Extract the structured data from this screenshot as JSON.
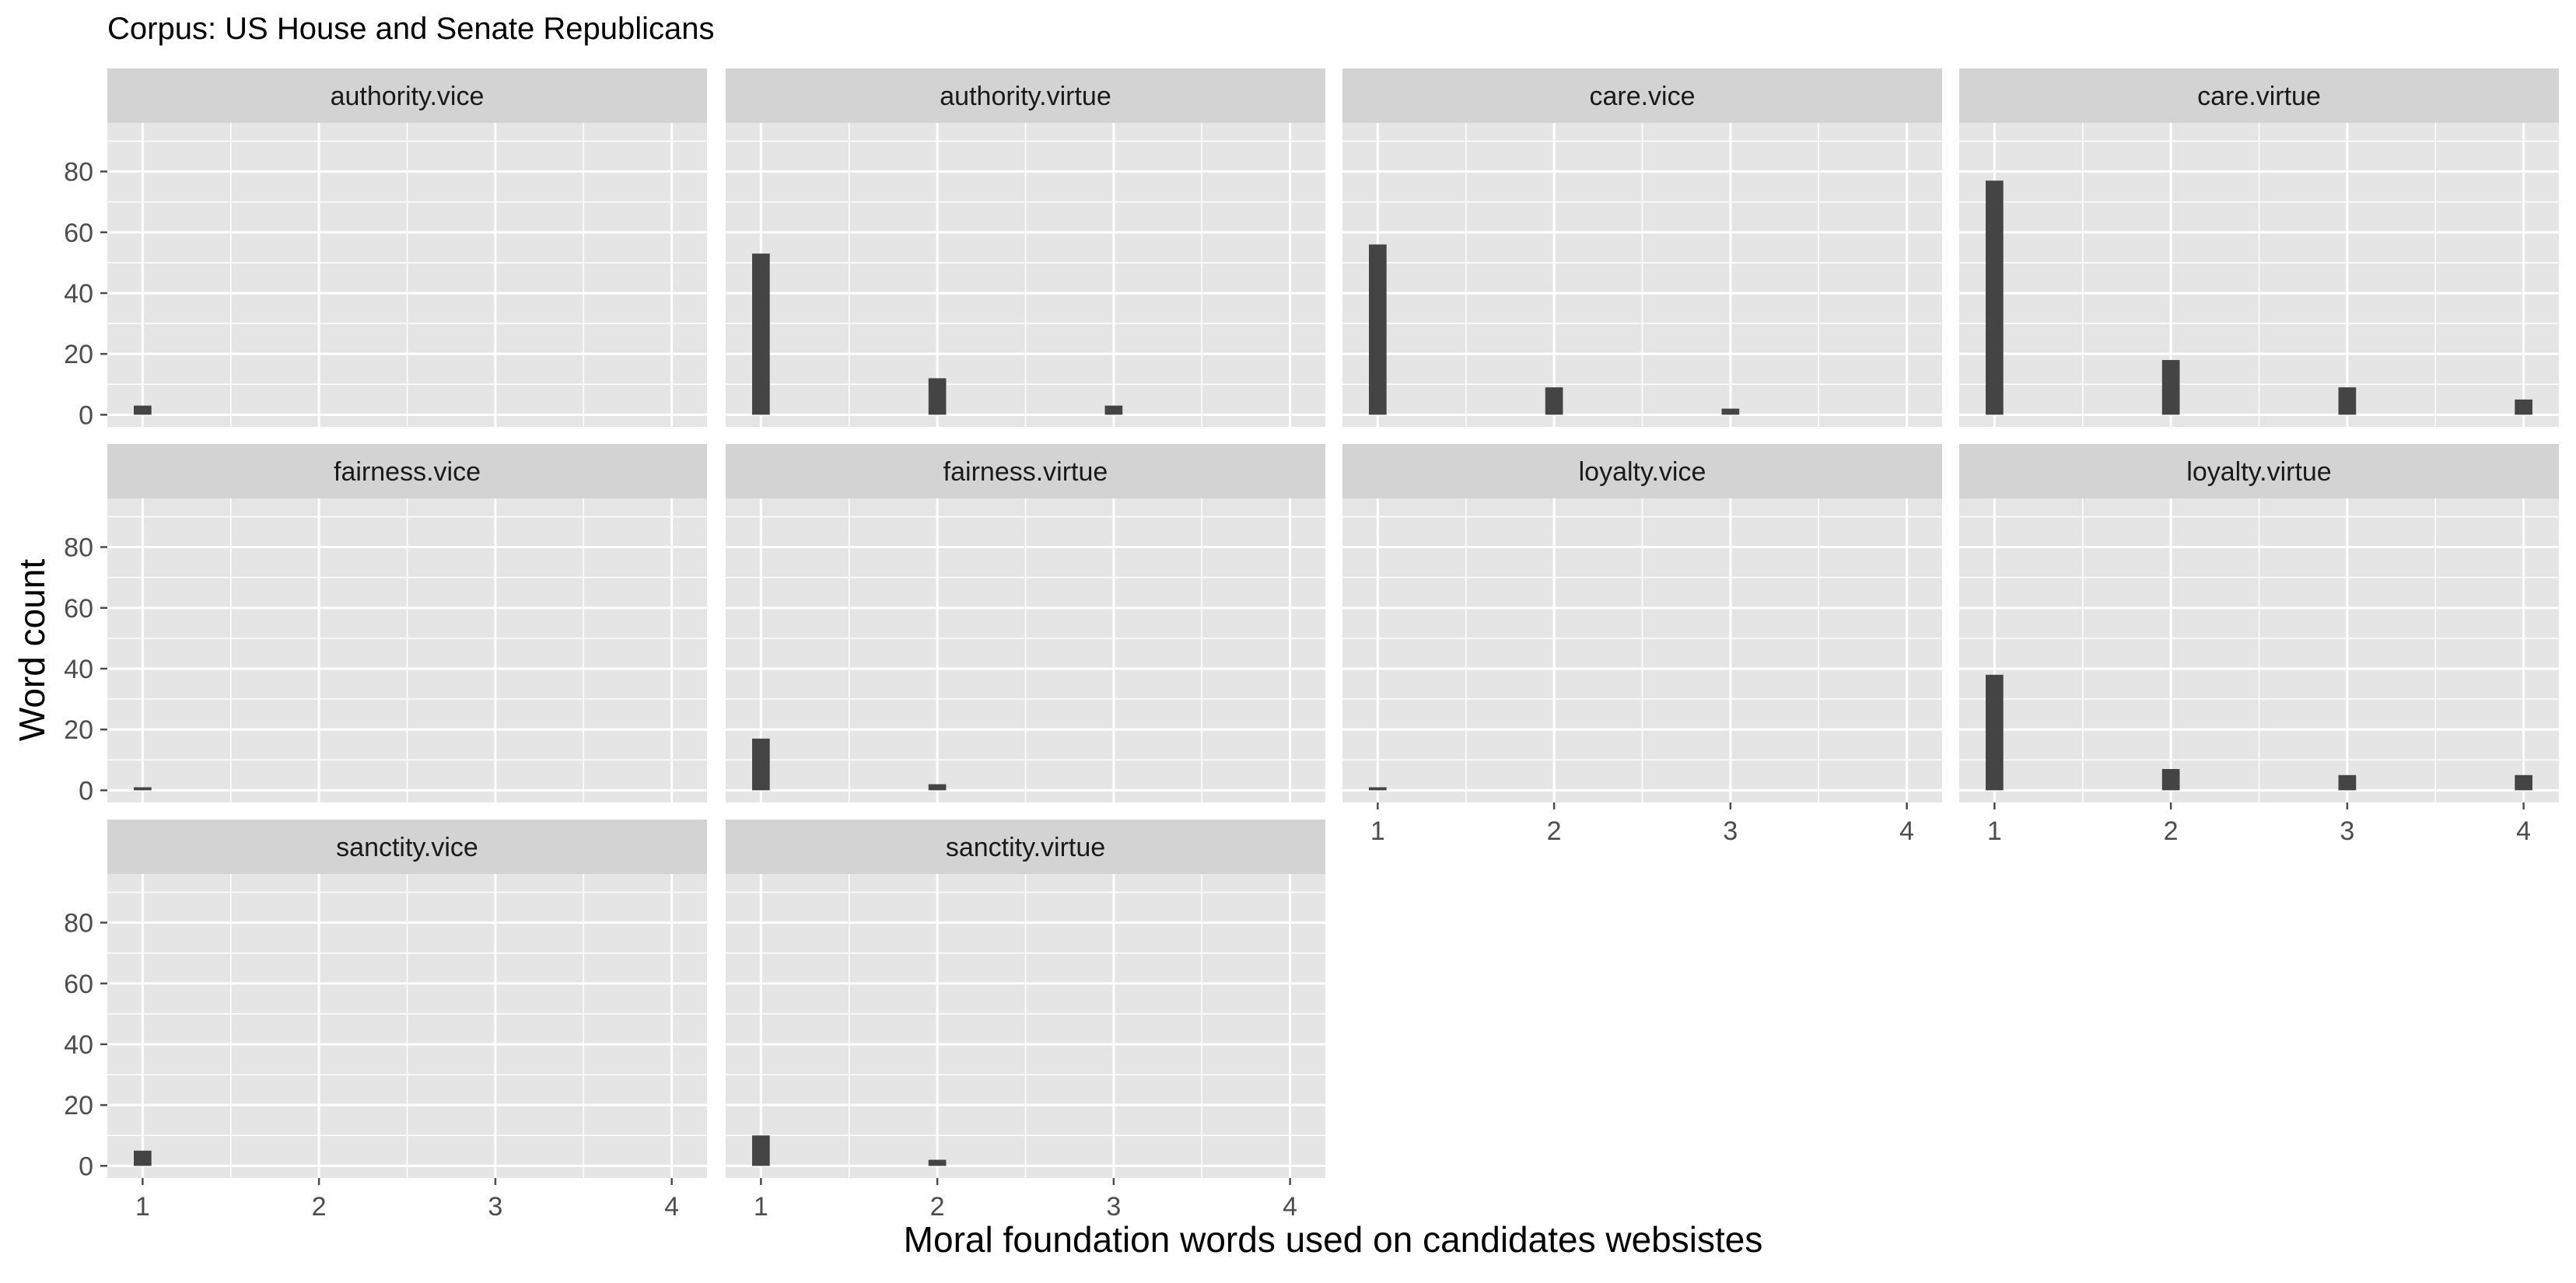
{
  "chart_data": {
    "type": "bar",
    "title": "Corpus: US House and Senate Republicans",
    "xlabel": "Moral foundation words used on candidates websistes",
    "ylabel": "Word count",
    "x_ticks": [
      1,
      2,
      3,
      4
    ],
    "y_ticks": [
      0,
      20,
      40,
      60,
      80
    ],
    "xlim": [
      0.8,
      4.2
    ],
    "ylim": [
      -4,
      96
    ],
    "grid": true,
    "facets": [
      {
        "label": "authority.vice",
        "x": [
          1
        ],
        "values": [
          3
        ]
      },
      {
        "label": "authority.virtue",
        "x": [
          1,
          2,
          3
        ],
        "values": [
          53,
          12,
          3
        ]
      },
      {
        "label": "care.vice",
        "x": [
          1,
          2,
          3
        ],
        "values": [
          56,
          9,
          2
        ]
      },
      {
        "label": "care.virtue",
        "x": [
          1,
          2,
          3,
          4
        ],
        "values": [
          77,
          18,
          9,
          5
        ]
      },
      {
        "label": "fairness.vice",
        "x": [
          1
        ],
        "values": [
          1
        ]
      },
      {
        "label": "fairness.virtue",
        "x": [
          1,
          2
        ],
        "values": [
          17,
          2
        ]
      },
      {
        "label": "loyalty.vice",
        "x": [
          1
        ],
        "values": [
          1
        ]
      },
      {
        "label": "loyalty.virtue",
        "x": [
          1,
          2,
          3,
          4
        ],
        "values": [
          38,
          7,
          5,
          5
        ]
      },
      {
        "label": "sanctity.vice",
        "x": [
          1
        ],
        "values": [
          5
        ]
      },
      {
        "label": "sanctity.virtue",
        "x": [
          1,
          2
        ],
        "values": [
          10,
          2
        ]
      }
    ],
    "colors": {
      "panel_bg": "#E5E5E5",
      "strip_bg": "#D3D3D3",
      "grid": "#FFFFFF",
      "bar": "#444444",
      "text": "#1A1A1A",
      "tick_text": "#4D4D4D"
    }
  }
}
